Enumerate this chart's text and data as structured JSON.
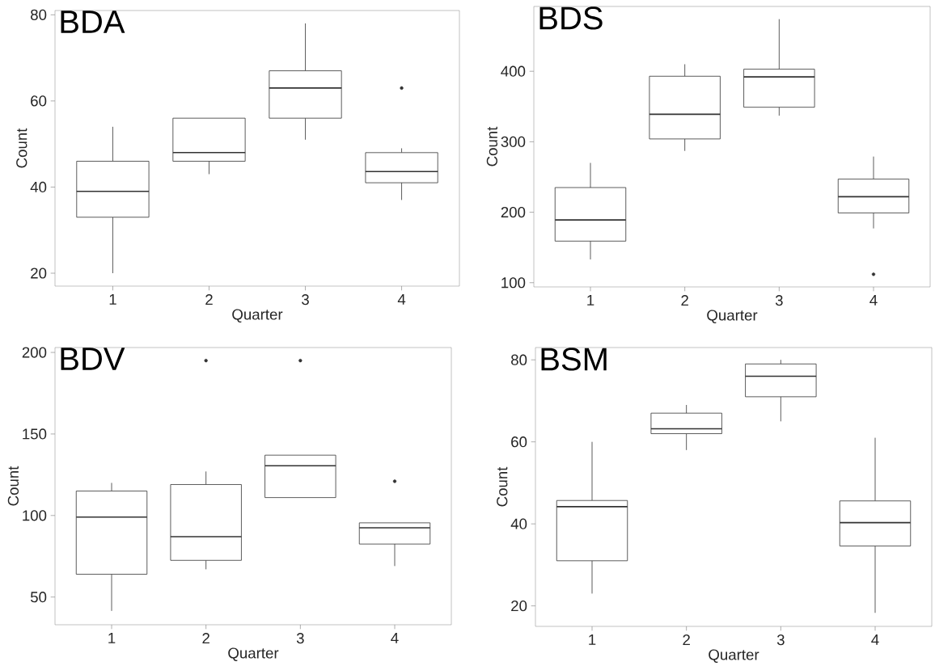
{
  "chart_data": [
    {
      "type": "box",
      "title": "BDA",
      "xlabel": "Quarter",
      "ylabel": "Count",
      "categories": [
        "1",
        "2",
        "3",
        "4"
      ],
      "color": "#333333",
      "ylim": [
        17,
        81
      ],
      "yticks": [
        20,
        40,
        60,
        80
      ],
      "boxes": [
        {
          "low": 20,
          "q1": 33,
          "median": 39,
          "q3": 46,
          "high": 54
        },
        {
          "low": 43,
          "q1": 46,
          "median": 48,
          "q3": 56,
          "high": 56
        },
        {
          "low": 51,
          "q1": 56,
          "median": 63,
          "q3": 67,
          "high": 78
        },
        {
          "low": 37,
          "q1": 41,
          "median": 43.6,
          "q3": 48,
          "high": 49,
          "outliers": [
            63
          ]
        }
      ]
    },
    {
      "type": "box",
      "title": "BDS",
      "xlabel": "Quarter",
      "ylabel": "Count",
      "categories": [
        "1",
        "2",
        "3",
        "4"
      ],
      "color": "#333333",
      "ylim": [
        94,
        492
      ],
      "yticks": [
        100,
        200,
        300,
        400
      ],
      "boxes": [
        {
          "low": 133,
          "q1": 159,
          "median": 189,
          "q3": 235,
          "high": 270
        },
        {
          "low": 287,
          "q1": 304,
          "median": 339,
          "q3": 393,
          "high": 410
        },
        {
          "low": 337,
          "q1": 349,
          "median": 392,
          "q3": 403,
          "high": 474
        },
        {
          "low": 177,
          "q1": 199,
          "median": 222,
          "q3": 247,
          "high": 279,
          "outliers": [
            112
          ]
        }
      ]
    },
    {
      "type": "box",
      "title": "BDV",
      "xlabel": "Quarter",
      "ylabel": "Count",
      "categories": [
        "1",
        "2",
        "3",
        "4"
      ],
      "color": "#333333",
      "ylim": [
        33,
        203
      ],
      "yticks": [
        50,
        100,
        150,
        200
      ],
      "boxes": [
        {
          "low": 41.5,
          "q1": 64,
          "median": 99,
          "q3": 115,
          "high": 120
        },
        {
          "low": 67,
          "q1": 72.5,
          "median": 87,
          "q3": 119,
          "high": 127,
          "outliers": [
            195
          ]
        },
        {
          "low": 111,
          "q1": 111,
          "median": 130.5,
          "q3": 137,
          "high": 137,
          "outliers": [
            195
          ]
        },
        {
          "low": 69,
          "q1": 82.5,
          "median": 92.5,
          "q3": 95.5,
          "high": 95.5,
          "outliers": [
            121
          ]
        }
      ]
    },
    {
      "type": "box",
      "title": "BSM",
      "xlabel": "Quarter",
      "ylabel": "Count",
      "categories": [
        "1",
        "2",
        "3",
        "4"
      ],
      "color": "#333333",
      "ylim": [
        15,
        83
      ],
      "yticks": [
        20,
        40,
        60,
        80
      ],
      "boxes": [
        {
          "low": 23,
          "q1": 31,
          "median": 44.2,
          "q3": 45.7,
          "high": 60
        },
        {
          "low": 58,
          "q1": 62,
          "median": 63.2,
          "q3": 67,
          "high": 69
        },
        {
          "low": 65,
          "q1": 71,
          "median": 76,
          "q3": 79,
          "high": 80
        },
        {
          "low": 18.3,
          "q1": 34.6,
          "median": 40.3,
          "q3": 45.6,
          "high": 61
        }
      ]
    }
  ]
}
